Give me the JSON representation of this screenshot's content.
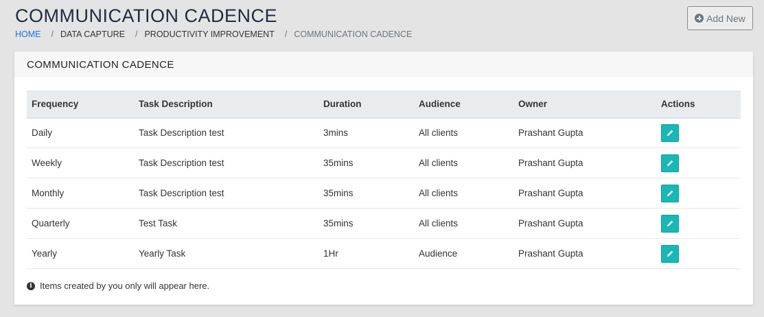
{
  "page_title": "COMMUNICATION CADENCE",
  "breadcrumb": {
    "home": "HOME",
    "items": [
      "DATA CAPTURE",
      "PRODUCTIVITY IMPROVEMENT",
      "COMMUNICATION CADENCE"
    ],
    "separator": "/"
  },
  "add_button": {
    "label": "Add New",
    "icon": "plus-circle-icon"
  },
  "card": {
    "title": "COMMUNICATION CADENCE",
    "columns": [
      "Frequency",
      "Task Description",
      "Duration",
      "Audience",
      "Owner",
      "Actions"
    ],
    "rows": [
      [
        "Daily",
        "Task Description test",
        "3mins",
        "All clients",
        "Prashant Gupta"
      ],
      [
        "Weekly",
        "Task Description test",
        "35mins",
        "All clients",
        "Prashant Gupta"
      ],
      [
        "Monthly",
        "Task Description test",
        "35mins",
        "All clients",
        "Prashant Gupta"
      ],
      [
        "Quarterly",
        "Test Task",
        "35mins",
        "All clients",
        "Prashant Gupta"
      ],
      [
        "Yearly",
        "Yearly Task",
        "1Hr",
        "Audience",
        "Prashant Gupta"
      ]
    ],
    "action_icon": "pencil-icon",
    "action_color": "#17b8b5",
    "note": "Items created by you only will appear here.",
    "note_icon": "info-circle-icon"
  }
}
